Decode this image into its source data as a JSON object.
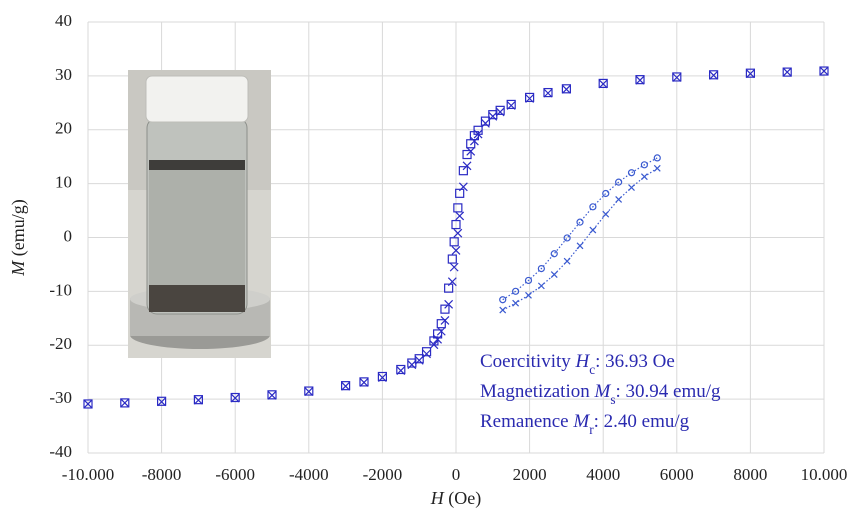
{
  "chart_data": [
    {
      "type": "scatter",
      "x": [
        -10000,
        -9000,
        -8000,
        -7000,
        -6000,
        -5000,
        -4000,
        -3000,
        -2500,
        -2000,
        -1500,
        -1200,
        -1000,
        -800,
        -600,
        -500,
        -400,
        -300,
        -200,
        -100,
        -50,
        0,
        50,
        100,
        200,
        300,
        400,
        500,
        600,
        800,
        1000,
        1200,
        1500,
        2000,
        2500,
        3000,
        4000,
        5000,
        6000,
        7000,
        8000,
        9000,
        10000
      ],
      "series": [
        {
          "marker": "square",
          "color": "#2b2bc4",
          "values": [
            -30.9,
            -30.7,
            -30.4,
            -30.1,
            -29.7,
            -29.2,
            -28.5,
            -27.5,
            -26.8,
            -25.8,
            -24.5,
            -23.3,
            -22.5,
            -21.2,
            -19.2,
            -17.9,
            -16.0,
            -13.3,
            -9.4,
            -4.0,
            -0.8,
            2.4,
            5.5,
            8.2,
            12.4,
            15.4,
            17.4,
            18.9,
            19.9,
            21.6,
            22.8,
            23.6,
            24.7,
            26.0,
            26.9,
            27.6,
            28.6,
            29.3,
            29.8,
            30.2,
            30.5,
            30.7,
            30.9
          ]
        },
        {
          "marker": "x",
          "color": "#2b2bc4",
          "values": [
            -30.9,
            -30.7,
            -30.5,
            -30.2,
            -29.8,
            -29.3,
            -28.6,
            -27.6,
            -26.9,
            -26.0,
            -24.7,
            -23.6,
            -22.8,
            -21.6,
            -19.9,
            -18.9,
            -17.4,
            -15.4,
            -12.4,
            -8.2,
            -5.5,
            -2.4,
            0.8,
            4.0,
            9.4,
            13.3,
            16.0,
            17.9,
            19.2,
            21.2,
            22.5,
            23.3,
            24.5,
            25.8,
            26.8,
            27.5,
            28.5,
            29.2,
            29.7,
            30.1,
            30.4,
            30.7,
            30.9
          ]
        }
      ],
      "xlim": [
        -10000,
        10000
      ],
      "ylim": [
        -40,
        40
      ],
      "xticks": [
        {
          "value": -10000,
          "label": "-10.000"
        },
        -8000,
        -6000,
        -4000,
        -2000,
        0,
        2000,
        4000,
        6000,
        8000,
        {
          "value": 10000,
          "label": "10.000"
        }
      ],
      "yticks": [
        -40,
        -30,
        -20,
        -10,
        0,
        10,
        20,
        30,
        40
      ],
      "grid": true,
      "xlabel": [
        {
          "text": "H",
          "italic": true
        },
        {
          "text": " (Oe)"
        }
      ],
      "ylabel": [
        {
          "text": "M",
          "italic": true
        },
        {
          "text": " (emu/g)"
        }
      ],
      "annotations": [
        {
          "color": "#2a2ab0",
          "parts": [
            {
              "text": "Coercitivity "
            },
            {
              "text": "H",
              "italic": true
            },
            {
              "text": "c",
              "sub": true
            },
            {
              "text": ": 36.93 Oe"
            }
          ]
        },
        {
          "color": "#2a2ab0",
          "parts": [
            {
              "text": "Magnetization "
            },
            {
              "text": "M",
              "italic": true
            },
            {
              "text": "s",
              "sub": true
            },
            {
              "text": ": 30.94 emu/g"
            }
          ]
        },
        {
          "color": "#2a2ab0",
          "parts": [
            {
              "text": "Remanence "
            },
            {
              "text": "M",
              "italic": true
            },
            {
              "text": "r",
              "sub": true
            },
            {
              "text": ": 2.40 emu/g"
            }
          ]
        }
      ]
    },
    {
      "type": "scatter",
      "line_style": "dotted",
      "x": [
        -300,
        -250,
        -200,
        -150,
        -100,
        -50,
        0,
        50,
        100,
        150,
        200,
        250,
        300
      ],
      "series": [
        {
          "marker": "circle",
          "color": "#3a5ad0",
          "values": [
            -13.3,
            -11.6,
            -9.4,
            -7.0,
            -4.0,
            -0.8,
            2.4,
            5.5,
            8.2,
            10.5,
            12.4,
            14.0,
            15.4
          ]
        },
        {
          "marker": "x",
          "color": "#3a5ad0",
          "values": [
            -15.4,
            -14.0,
            -12.4,
            -10.5,
            -8.2,
            -5.5,
            -2.4,
            0.8,
            4.0,
            7.0,
            9.4,
            11.6,
            13.3
          ]
        }
      ],
      "xlim": [
        -330,
        330
      ],
      "ylim": [
        -17,
        17
      ]
    }
  ]
}
